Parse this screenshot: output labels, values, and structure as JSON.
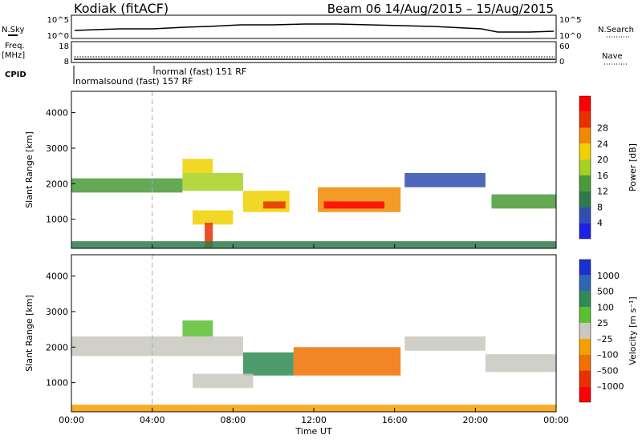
{
  "header": {
    "station": "Kodiak (fitACF)",
    "beam_date": "Beam 06  14/Aug/2015 – 15/Aug/2015"
  },
  "strip": {
    "nsky_label": "N.Sky",
    "nsearch_label": "N.Search",
    "nsky_ticks": [
      "10^5",
      "10^0"
    ],
    "nsky_right_ticks": [
      "10^5",
      "10^0"
    ],
    "freq_label_1": "Freq.",
    "freq_label_2": "[MHz]",
    "freq_ticks": [
      "18",
      "8"
    ],
    "nave_label": "Nave",
    "nave_ticks": [
      "60",
      "0"
    ],
    "cpid_label": "CPID",
    "cpid_1": "normalsound (fast) 157 RF",
    "cpid_2": "normal (fast)  151 RF"
  },
  "colors": {
    "power": [
      "#1f1fe6",
      "#2f4fb0",
      "#2f7a4a",
      "#4a9a3a",
      "#a8d020",
      "#f0d000",
      "#f08a00",
      "#e83000",
      "#ff0000"
    ],
    "velocity": [
      "#1a30d0",
      "#2f66b0",
      "#2f8a55",
      "#5ac030",
      "#c8c8c0",
      "#f6a000",
      "#f07000",
      "#e83000",
      "#ff0000"
    ]
  },
  "chart_data": [
    {
      "type": "heatmap",
      "title": "Power",
      "ylabel": "Slant Range [km]",
      "xlabel": "",
      "x_ticks": [
        "00:00",
        "04:00",
        "08:00",
        "12:00",
        "16:00",
        "20:00",
        "00:00"
      ],
      "y_ticks": [
        "1000",
        "2000",
        "3000",
        "4000"
      ],
      "ylim": [
        180,
        4600
      ],
      "colorbar_label": "Power [dB]",
      "colorbar_ticks": [
        "4",
        "8",
        "12",
        "16",
        "20",
        "24",
        "28"
      ],
      "bands": [
        {
          "t0": 0.0,
          "t1": 5.5,
          "r_low": 1750,
          "r_high": 2150,
          "level": 3
        },
        {
          "t0": 5.5,
          "t1": 8.5,
          "r_low": 1800,
          "r_high": 2300,
          "level": 4
        },
        {
          "t0": 5.5,
          "t1": 7.0,
          "r_low": 2300,
          "r_high": 2700,
          "level": 5
        },
        {
          "t0": 8.5,
          "t1": 10.8,
          "r_low": 1200,
          "r_high": 1800,
          "level": 5
        },
        {
          "t0": 9.5,
          "t1": 10.6,
          "r_low": 1300,
          "r_high": 1500,
          "level": 7
        },
        {
          "t0": 6.0,
          "t1": 8.0,
          "r_low": 850,
          "r_high": 1250,
          "level": 5
        },
        {
          "t0": 6.6,
          "t1": 7.0,
          "r_low": 200,
          "r_high": 900,
          "level": 7
        },
        {
          "t0": 12.2,
          "t1": 16.3,
          "r_low": 1200,
          "r_high": 1900,
          "level": 6
        },
        {
          "t0": 12.5,
          "t1": 15.5,
          "r_low": 1300,
          "r_high": 1500,
          "level": 8
        },
        {
          "t0": 20.8,
          "t1": 24.0,
          "r_low": 1300,
          "r_high": 1700,
          "level": 3
        },
        {
          "t0": 16.5,
          "t1": 20.5,
          "r_low": 1900,
          "r_high": 2300,
          "level": 1
        },
        {
          "t0": 0.0,
          "t1": 24.0,
          "r_low": 180,
          "r_high": 380,
          "level": 2
        }
      ]
    },
    {
      "type": "heatmap",
      "title": "Velocity",
      "ylabel": "Slant Range [km]",
      "xlabel": "Time UT",
      "x_ticks": [
        "00:00",
        "04:00",
        "08:00",
        "12:00",
        "16:00",
        "20:00",
        "00:00"
      ],
      "y_ticks": [
        "1000",
        "2000",
        "3000",
        "4000"
      ],
      "ylim": [
        180,
        4600
      ],
      "colorbar_label": "Velocity [m s⁻¹]",
      "colorbar_ticks": [
        "1000",
        "500",
        "100",
        "25",
        "–25",
        "–100",
        "–500",
        "–1000"
      ],
      "bands": [
        {
          "t0": 0.0,
          "t1": 8.5,
          "r_low": 1750,
          "r_high": 2300,
          "level": 4
        },
        {
          "t0": 5.5,
          "t1": 7.0,
          "r_low": 2300,
          "r_high": 2750,
          "level": 3
        },
        {
          "t0": 8.5,
          "t1": 11.0,
          "r_low": 1200,
          "r_high": 1850,
          "level": 2
        },
        {
          "t0": 6.0,
          "t1": 9.0,
          "r_low": 850,
          "r_high": 1250,
          "level": 4
        },
        {
          "t0": 11.0,
          "t1": 16.3,
          "r_low": 1200,
          "r_high": 2000,
          "level": 6
        },
        {
          "t0": 20.5,
          "t1": 24.0,
          "r_low": 1300,
          "r_high": 1800,
          "level": 4
        },
        {
          "t0": 16.5,
          "t1": 20.5,
          "r_low": 1900,
          "r_high": 2300,
          "level": 4
        },
        {
          "t0": 0.0,
          "t1": 24.0,
          "r_low": 180,
          "r_high": 380,
          "level": 5
        }
      ]
    }
  ]
}
